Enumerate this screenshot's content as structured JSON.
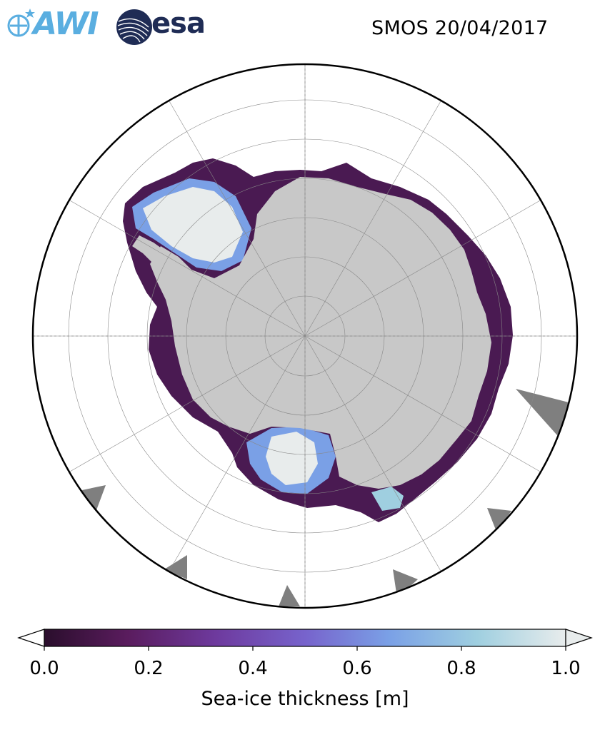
{
  "header": {
    "title": "SMOS 20/04/2017",
    "logos": [
      {
        "name": "awi-logo",
        "text": "AWI",
        "color": "#5aaee0"
      },
      {
        "name": "esa-logo",
        "text": "esa",
        "color": "#1f2c55"
      }
    ]
  },
  "map": {
    "projection": "south-polar-stereographic",
    "land_color": "#c8c8c8",
    "missing_data_color": "#7f7f7f",
    "graticule_color": "#888888",
    "border_color": "#000000"
  },
  "colorbar": {
    "label": "Sea-ice thickness [m]",
    "ticks": [
      "0.0",
      "0.2",
      "0.4",
      "0.6",
      "0.8",
      "1.0"
    ],
    "min": 0.0,
    "max": 1.0,
    "extend": "both",
    "colormap": [
      "#2a0e2c",
      "#5a1c5e",
      "#6e3a9e",
      "#7763cc",
      "#7aa0e6",
      "#9fcfe0",
      "#e8ecec"
    ]
  }
}
